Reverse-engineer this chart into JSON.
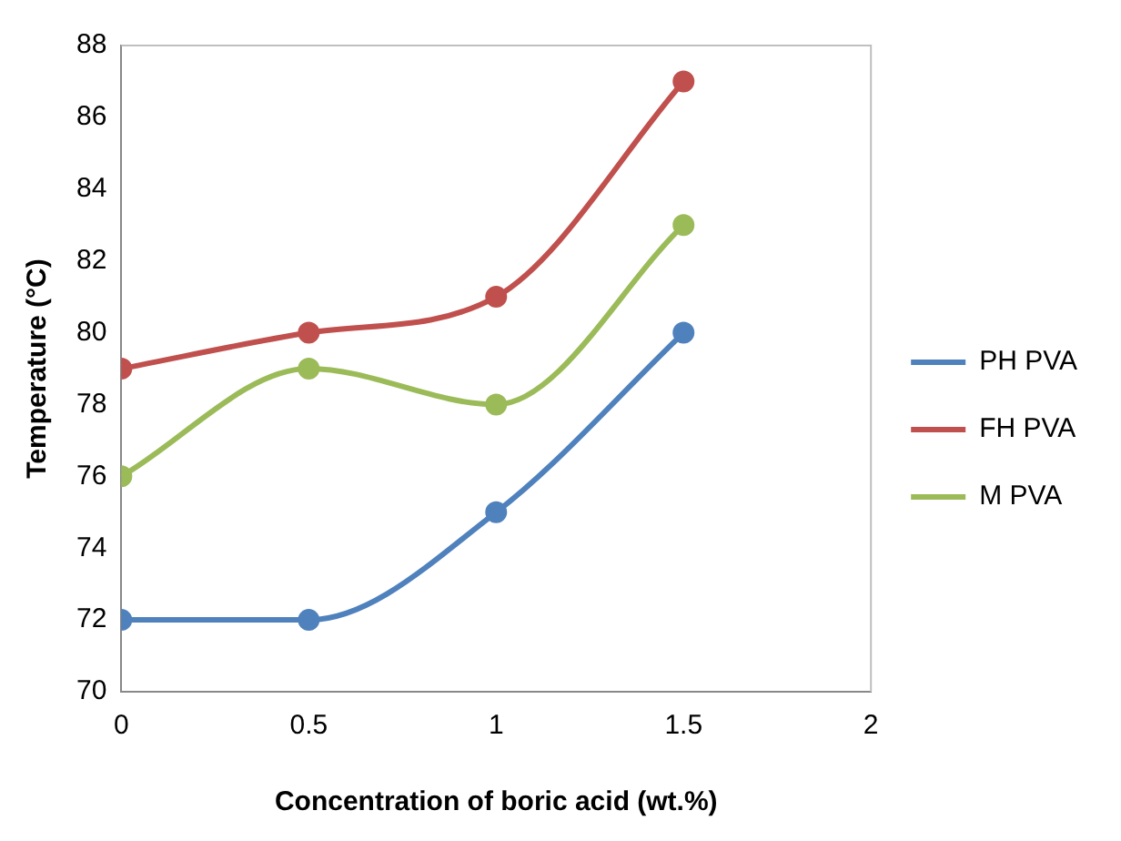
{
  "chart_data": {
    "type": "line",
    "xlabel": "Concentration of boric acid (wt.%)",
    "ylabel": "Temperature (°C)",
    "x": [
      0,
      0.5,
      1,
      1.5
    ],
    "series": [
      {
        "name": "PH PVA",
        "color": "#4f81bd",
        "values": [
          72,
          72,
          75,
          80
        ]
      },
      {
        "name": "FH PVA",
        "color": "#c0504d",
        "values": [
          79,
          80,
          81,
          87
        ]
      },
      {
        "name": "M PVA",
        "color": "#9bbb59",
        "values": [
          76,
          79,
          78,
          83
        ]
      }
    ],
    "xlim": [
      0,
      2
    ],
    "xticks": [
      0,
      0.5,
      1,
      1.5,
      2
    ],
    "ylim": [
      70,
      88
    ],
    "yticks": [
      70,
      72,
      74,
      76,
      78,
      80,
      82,
      84,
      86,
      88
    ],
    "grid": false,
    "legend": "right",
    "marker": "circle",
    "line_style": "solid"
  }
}
